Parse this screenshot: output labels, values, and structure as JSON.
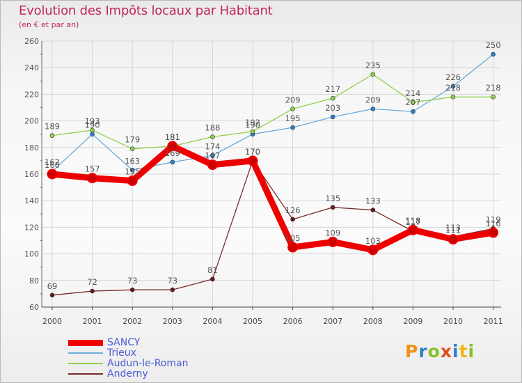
{
  "title": "Evolution des Impôts locaux par Habitant",
  "subtitle": "(en € et par an)",
  "logo": {
    "letters": [
      "P",
      "r",
      "o",
      "x",
      "i",
      "t",
      "i"
    ],
    "colors": [
      "#f29018",
      "#2f7fc8",
      "#88c02a",
      "#e0501a",
      "#2f7fc8",
      "#f2b418",
      "#88c02a"
    ]
  },
  "chart_data": {
    "type": "line",
    "title": "Evolution des Impôts locaux par Habitant",
    "subtitle": "(en € et par an)",
    "x": [
      "2000",
      "2001",
      "2002",
      "2003",
      "2004",
      "2005",
      "2006",
      "2007",
      "2008",
      "2009",
      "2010",
      "2011"
    ],
    "ylim": [
      60,
      260
    ],
    "yticks": [
      60,
      80,
      100,
      120,
      140,
      160,
      180,
      200,
      220,
      240,
      260
    ],
    "grid": true,
    "legend_position": "bottom-left",
    "series": [
      {
        "name": "SANCY",
        "color": "#ee0000",
        "values": [
          160,
          157,
          155,
          181,
          167,
          170,
          105,
          109,
          103,
          118,
          111,
          116
        ],
        "labels": [
          "160",
          "157",
          "155",
          "181",
          "167",
          "170",
          "105",
          "109",
          "103",
          "118",
          "111",
          "116"
        ]
      },
      {
        "name": "Trieux",
        "color": "#6aaad8",
        "values": [
          162,
          190,
          163,
          169,
          174,
          190,
          195,
          203,
          209,
          207,
          226,
          250
        ],
        "labels": [
          "162",
          "190",
          "163",
          "169",
          "174",
          "190",
          "195",
          "203",
          "209",
          "207",
          "226",
          "250"
        ]
      },
      {
        "name": "Audun-le-Roman",
        "color": "#8ed04a",
        "values": [
          189,
          193,
          179,
          181,
          188,
          192,
          209,
          217,
          235,
          214,
          218,
          218
        ],
        "labels": [
          "189",
          "193",
          "179",
          "181",
          "188",
          "192",
          "209",
          "217",
          "235",
          "214",
          "218",
          "218"
        ]
      },
      {
        "name": "Anderny",
        "color": "#7a2a2a",
        "values": [
          69,
          72,
          73,
          73,
          81,
          170,
          126,
          135,
          133,
          117,
          113,
          119
        ],
        "labels": [
          "69",
          "72",
          "73",
          "73",
          "81",
          "170",
          "126",
          "135",
          "133",
          "117",
          "113",
          "119"
        ]
      }
    ]
  }
}
